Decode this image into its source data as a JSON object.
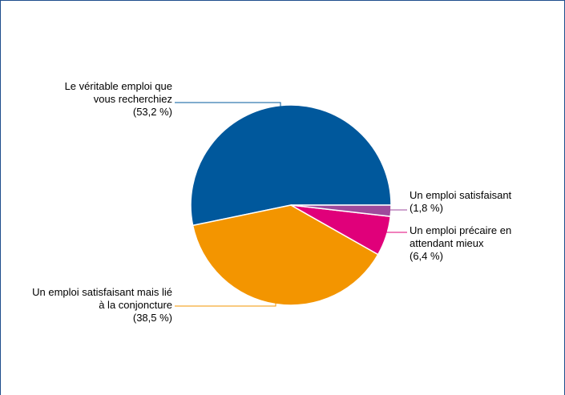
{
  "chart_data": {
    "type": "pie",
    "categories": [
      "Le véritable emploi que vous recherchiez",
      "Un emploi satisfaisant mais lié à la conjoncture",
      "Un emploi précaire en attendant mieux",
      "Un emploi satisfaisant"
    ],
    "values": [
      53.2,
      38.5,
      6.4,
      1.8
    ],
    "value_labels": [
      "(53,2 %)",
      "(38,5 %)",
      "(6,4 %)",
      "(1,8 %)"
    ],
    "colors": [
      "#00589c",
      "#f39500",
      "#e0007a",
      "#9e4a9c"
    ]
  }
}
